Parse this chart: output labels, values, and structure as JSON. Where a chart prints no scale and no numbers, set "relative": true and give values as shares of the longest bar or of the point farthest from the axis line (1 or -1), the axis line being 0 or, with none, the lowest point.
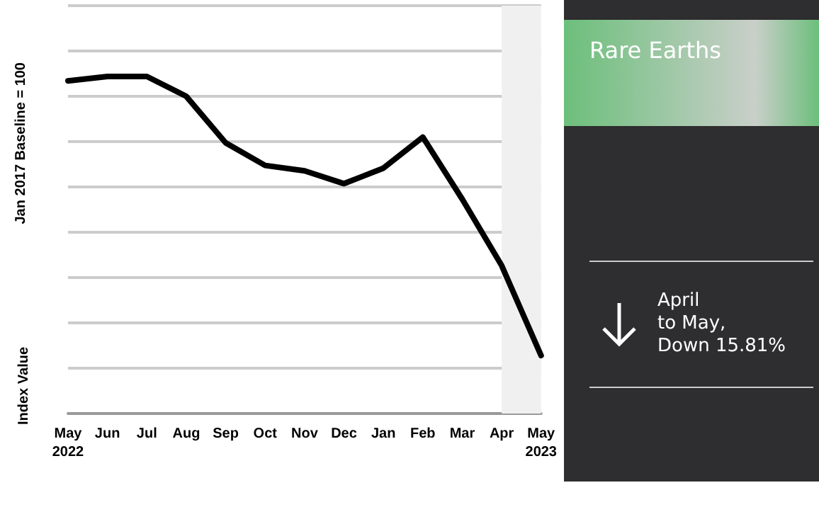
{
  "chart_data": {
    "type": "line",
    "title": "Rare Earths",
    "relative": true,
    "ylabel": "Jan 2017 Baseline = 100",
    "annotations": [
      "Index Value",
      "April\nto May,\nDown 15.81%"
    ],
    "categories": [
      "May\n2022",
      "Jun",
      "Jul",
      "Aug",
      "Sep",
      "Oct",
      "Nov",
      "Dec",
      "Jan",
      "Feb",
      "Mar",
      "Apr",
      "May\n2023"
    ],
    "series": [
      {
        "color": "#000000",
        "values": [
          0.987,
          1,
          1,
          0.941,
          0.803,
          0.736,
          0.72,
          0.682,
          0.728,
          0.82,
          0.636,
          0.439,
          0.172
        ]
      }
    ],
    "bands": [
      {
        "axis": "x",
        "from": "Apr",
        "to": "May\n2023",
        "color": "#f0f0f0"
      }
    ],
    "grid": "y",
    "marker": "none",
    "line_style": "solid"
  }
}
